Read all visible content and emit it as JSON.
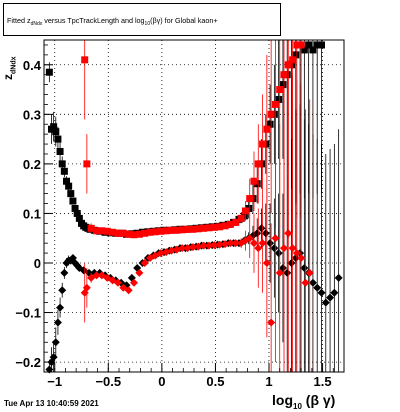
{
  "title": {
    "pre": "Fitted  z",
    "sub1": "dNdx",
    "mid": "versus TpcTrackLength and log",
    "sub2": "10",
    "post": "(βγ) for Global kaon+"
  },
  "datestamp": "Tue Apr 13 10:40:59 2021",
  "axis": {
    "x_main": "log",
    "x_sub": "10",
    "x_post": "(β γ)",
    "y_main": "z",
    "y_sub": "dNdx"
  },
  "colors": {
    "black": "#000000",
    "red": "#ff0000",
    "grid": "#000000"
  },
  "chart_data": {
    "type": "scatter",
    "xlim": [
      -1.1,
      1.7
    ],
    "ylim": [
      -0.22,
      0.45
    ],
    "x_ticks": [
      -1,
      -0.5,
      0,
      0.5,
      1,
      1.5
    ],
    "x_tick_labels": [
      "−1",
      "−0.5",
      "0",
      "0.5",
      "1",
      "1.5"
    ],
    "y_ticks": [
      -0.2,
      -0.1,
      0,
      0.1,
      0.2,
      0.3,
      0.4
    ],
    "y_tick_labels": [
      "−0.2",
      "−0.1",
      "0",
      "0.1",
      "0.2",
      "0.3",
      "0.4"
    ],
    "grid": true,
    "series": [
      {
        "color": "black",
        "marker": "square",
        "x": [
          -1.05,
          -1.03,
          -1.01,
          -0.99,
          -0.97,
          -0.95,
          -0.93,
          -0.91,
          -0.89,
          -0.87,
          -0.85,
          -0.83,
          -0.81,
          -0.79,
          -0.77,
          -0.75,
          -0.73,
          -0.71,
          -0.69,
          -0.67,
          -0.63,
          -0.58,
          -0.53,
          -0.48,
          -0.43,
          -0.38,
          -0.33,
          -0.28,
          -0.23,
          -0.18,
          -0.13,
          -0.08,
          -0.03,
          0.02,
          0.07,
          0.12,
          0.17,
          0.22,
          0.27,
          0.32,
          0.37,
          0.42,
          0.47,
          0.52,
          0.57,
          0.62,
          0.67,
          0.72,
          0.77,
          0.81,
          0.85,
          0.89,
          0.93,
          0.97,
          1.01,
          1.05,
          1.09,
          1.13,
          1.17,
          1.21,
          1.25,
          1.29,
          1.33,
          1.37,
          1.41,
          1.45,
          1.49
        ],
        "y": [
          0.385,
          0.27,
          0.275,
          0.265,
          0.25,
          0.225,
          0.2,
          0.185,
          0.165,
          0.155,
          0.14,
          0.125,
          0.11,
          0.1,
          0.09,
          0.08,
          0.075,
          0.072,
          0.07,
          0.068,
          0.066,
          0.064,
          0.062,
          0.061,
          0.06,
          0.06,
          0.058,
          0.059,
          0.06,
          0.062,
          0.063,
          0.064,
          0.065,
          0.066,
          0.066,
          0.067,
          0.068,
          0.068,
          0.069,
          0.07,
          0.071,
          0.072,
          0.073,
          0.074,
          0.076,
          0.078,
          0.082,
          0.088,
          0.095,
          0.11,
          0.13,
          0.16,
          0.2,
          0.24,
          0.28,
          0.3,
          0.33,
          0.36,
          0.38,
          0.4,
          0.42,
          0.44,
          0.43,
          0.44,
          0.43,
          0.44,
          0.44
        ],
        "yerr": [
          0.02,
          0.03,
          0.03,
          0.03,
          0.025,
          0.02,
          0.015,
          0.012,
          0.01,
          0.01,
          0.008,
          0.007,
          0.006,
          0.005,
          0.005,
          0.004,
          0.003,
          0.003,
          0.003,
          0.003,
          0.002,
          0.002,
          0.002,
          0.002,
          0.002,
          0.002,
          0.002,
          0.002,
          0.002,
          0.002,
          0.002,
          0.002,
          0.002,
          0.002,
          0.002,
          0.002,
          0.002,
          0.002,
          0.002,
          0.002,
          0.002,
          0.002,
          0.002,
          0.003,
          0.003,
          0.004,
          0.005,
          0.008,
          0.012,
          0.02,
          0.03,
          0.04,
          0.05,
          0.06,
          0.08,
          0.1,
          0.12,
          0.15,
          0.2,
          0.25,
          0.3,
          0.3,
          0.3,
          0.3,
          0.3,
          0.3,
          0.3
        ]
      },
      {
        "color": "red",
        "marker": "square",
        "x": [
          -0.72,
          -0.7,
          -0.66,
          -0.61,
          -0.56,
          -0.51,
          -0.46,
          -0.41,
          -0.36,
          -0.31,
          -0.26,
          -0.21,
          -0.16,
          -0.11,
          -0.06,
          -0.01,
          0.04,
          0.09,
          0.14,
          0.19,
          0.24,
          0.29,
          0.34,
          0.39,
          0.44,
          0.49,
          0.54,
          0.59,
          0.64,
          0.69,
          0.74,
          0.78,
          0.82,
          0.86,
          0.9,
          0.94,
          0.98,
          1.02,
          1.06,
          1.1,
          1.14,
          1.18,
          1.22,
          1.26,
          1.3
        ],
        "y": [
          0.41,
          0.2,
          0.07,
          0.065,
          0.065,
          0.064,
          0.062,
          0.06,
          0.06,
          0.058,
          0.057,
          0.058,
          0.06,
          0.062,
          0.063,
          0.064,
          0.065,
          0.066,
          0.066,
          0.067,
          0.068,
          0.068,
          0.069,
          0.07,
          0.071,
          0.072,
          0.073,
          0.075,
          0.078,
          0.082,
          0.09,
          0.105,
          0.13,
          0.165,
          0.2,
          0.24,
          0.27,
          0.3,
          0.32,
          0.35,
          0.38,
          0.4,
          0.41,
          0.44,
          0.44
        ],
        "yerr": [
          0.12,
          0.06,
          0.01,
          0.005,
          0.003,
          0.002,
          0.002,
          0.002,
          0.002,
          0.002,
          0.002,
          0.002,
          0.002,
          0.002,
          0.002,
          0.002,
          0.002,
          0.002,
          0.002,
          0.002,
          0.002,
          0.002,
          0.002,
          0.002,
          0.002,
          0.002,
          0.003,
          0.003,
          0.004,
          0.006,
          0.01,
          0.02,
          0.04,
          0.06,
          0.08,
          0.1,
          0.15,
          0.2,
          0.25,
          0.3,
          0.35,
          0.35,
          0.35,
          0.35,
          0.35
        ]
      },
      {
        "color": "black",
        "marker": "diamond",
        "x": [
          -1.05,
          -1.03,
          -1.01,
          -0.99,
          -0.97,
          -0.95,
          -0.93,
          -0.91,
          -0.89,
          -0.87,
          -0.85,
          -0.83,
          -0.81,
          -0.79,
          -0.77,
          -0.73,
          -0.68,
          -0.63,
          -0.58,
          -0.53,
          -0.48,
          -0.43,
          -0.38,
          -0.33,
          -0.28,
          -0.23,
          -0.18,
          -0.13,
          -0.08,
          -0.03,
          0.02,
          0.07,
          0.12,
          0.17,
          0.22,
          0.27,
          0.32,
          0.37,
          0.42,
          0.47,
          0.52,
          0.57,
          0.62,
          0.67,
          0.72,
          0.77,
          0.81,
          0.85,
          0.89,
          0.93,
          0.97,
          1.01,
          1.05,
          1.09,
          1.13,
          1.17,
          1.21,
          1.25,
          1.29,
          1.33,
          1.37,
          1.41,
          1.45,
          1.49,
          1.53,
          1.57,
          1.61,
          1.65
        ],
        "y": [
          -0.215,
          -0.2,
          -0.19,
          -0.16,
          -0.12,
          -0.09,
          -0.055,
          -0.02,
          0,
          0.005,
          0.005,
          0.01,
          0.0,
          -0.005,
          -0.01,
          -0.015,
          -0.02,
          -0.02,
          -0.02,
          -0.025,
          -0.03,
          -0.035,
          -0.04,
          -0.045,
          -0.03,
          -0.01,
          0.0,
          0.01,
          0.015,
          0.02,
          0.022,
          0.025,
          0.027,
          0.03,
          0.03,
          0.032,
          0.033,
          0.035,
          0.035,
          0.036,
          0.037,
          0.038,
          0.04,
          0.04,
          0.04,
          0.045,
          0.05,
          0.055,
          0.06,
          0.07,
          0.06,
          0.04,
          0.03,
          0.02,
          -0.01,
          -0.02,
          0.0,
          0.01,
          0.02,
          -0.01,
          -0.02,
          -0.04,
          -0.05,
          -0.06,
          -0.08,
          -0.07,
          -0.06,
          -0.03
        ],
        "yerr": [
          0.02,
          0.03,
          0.03,
          0.03,
          0.025,
          0.02,
          0.015,
          0.012,
          0.01,
          0.01,
          0.008,
          0.007,
          0.006,
          0.005,
          0.005,
          0.004,
          0.003,
          0.003,
          0.003,
          0.003,
          0.002,
          0.002,
          0.002,
          0.002,
          0.002,
          0.002,
          0.002,
          0.002,
          0.002,
          0.002,
          0.002,
          0.002,
          0.002,
          0.002,
          0.002,
          0.002,
          0.002,
          0.002,
          0.002,
          0.002,
          0.002,
          0.002,
          0.003,
          0.004,
          0.005,
          0.008,
          0.012,
          0.02,
          0.03,
          0.04,
          0.06,
          0.08,
          0.1,
          0.12,
          0.15,
          0.2,
          0.25,
          0.3,
          0.3,
          0.3,
          0.3,
          0.3,
          0.3,
          0.3,
          0.3,
          0.3,
          0.3,
          0.3
        ]
      },
      {
        "color": "red",
        "marker": "diamond",
        "x": [
          -0.72,
          -0.7,
          -0.66,
          -0.61,
          -0.56,
          -0.51,
          -0.46,
          -0.41,
          -0.36,
          -0.31,
          -0.26,
          -0.21,
          -0.16,
          -0.11,
          -0.06,
          -0.01,
          0.04,
          0.09,
          0.14,
          0.19,
          0.24,
          0.29,
          0.34,
          0.39,
          0.44,
          0.49,
          0.54,
          0.59,
          0.64,
          0.69,
          0.74,
          0.78,
          0.82,
          0.86,
          0.9,
          0.94,
          0.98,
          1.02,
          1.06,
          1.1,
          1.14,
          1.18,
          1.22,
          1.26,
          1.3,
          1.34,
          1.38
        ],
        "y": [
          -0.06,
          -0.05,
          -0.03,
          -0.025,
          -0.025,
          -0.03,
          -0.035,
          -0.04,
          -0.05,
          -0.055,
          -0.04,
          -0.02,
          0.0,
          0.01,
          0.015,
          0.02,
          0.022,
          0.025,
          0.027,
          0.03,
          0.03,
          0.032,
          0.033,
          0.035,
          0.035,
          0.036,
          0.037,
          0.038,
          0.04,
          0.04,
          0.04,
          0.045,
          0.05,
          0.04,
          0.03,
          0.04,
          0.0,
          -0.12,
          0.05,
          -0.02,
          0.03,
          0.06,
          0.03,
          0.02,
          0.01,
          -0.04,
          -0.02
        ],
        "yerr": [
          0.06,
          0.04,
          0.01,
          0.005,
          0.003,
          0.002,
          0.002,
          0.002,
          0.002,
          0.002,
          0.002,
          0.002,
          0.002,
          0.002,
          0.002,
          0.002,
          0.002,
          0.002,
          0.002,
          0.002,
          0.002,
          0.002,
          0.002,
          0.002,
          0.002,
          0.002,
          0.003,
          0.003,
          0.004,
          0.006,
          0.01,
          0.02,
          0.04,
          0.06,
          0.08,
          0.1,
          0.15,
          0.2,
          0.25,
          0.3,
          0.35,
          0.35,
          0.35,
          0.35,
          0.35,
          0.35,
          0.35
        ]
      }
    ]
  }
}
